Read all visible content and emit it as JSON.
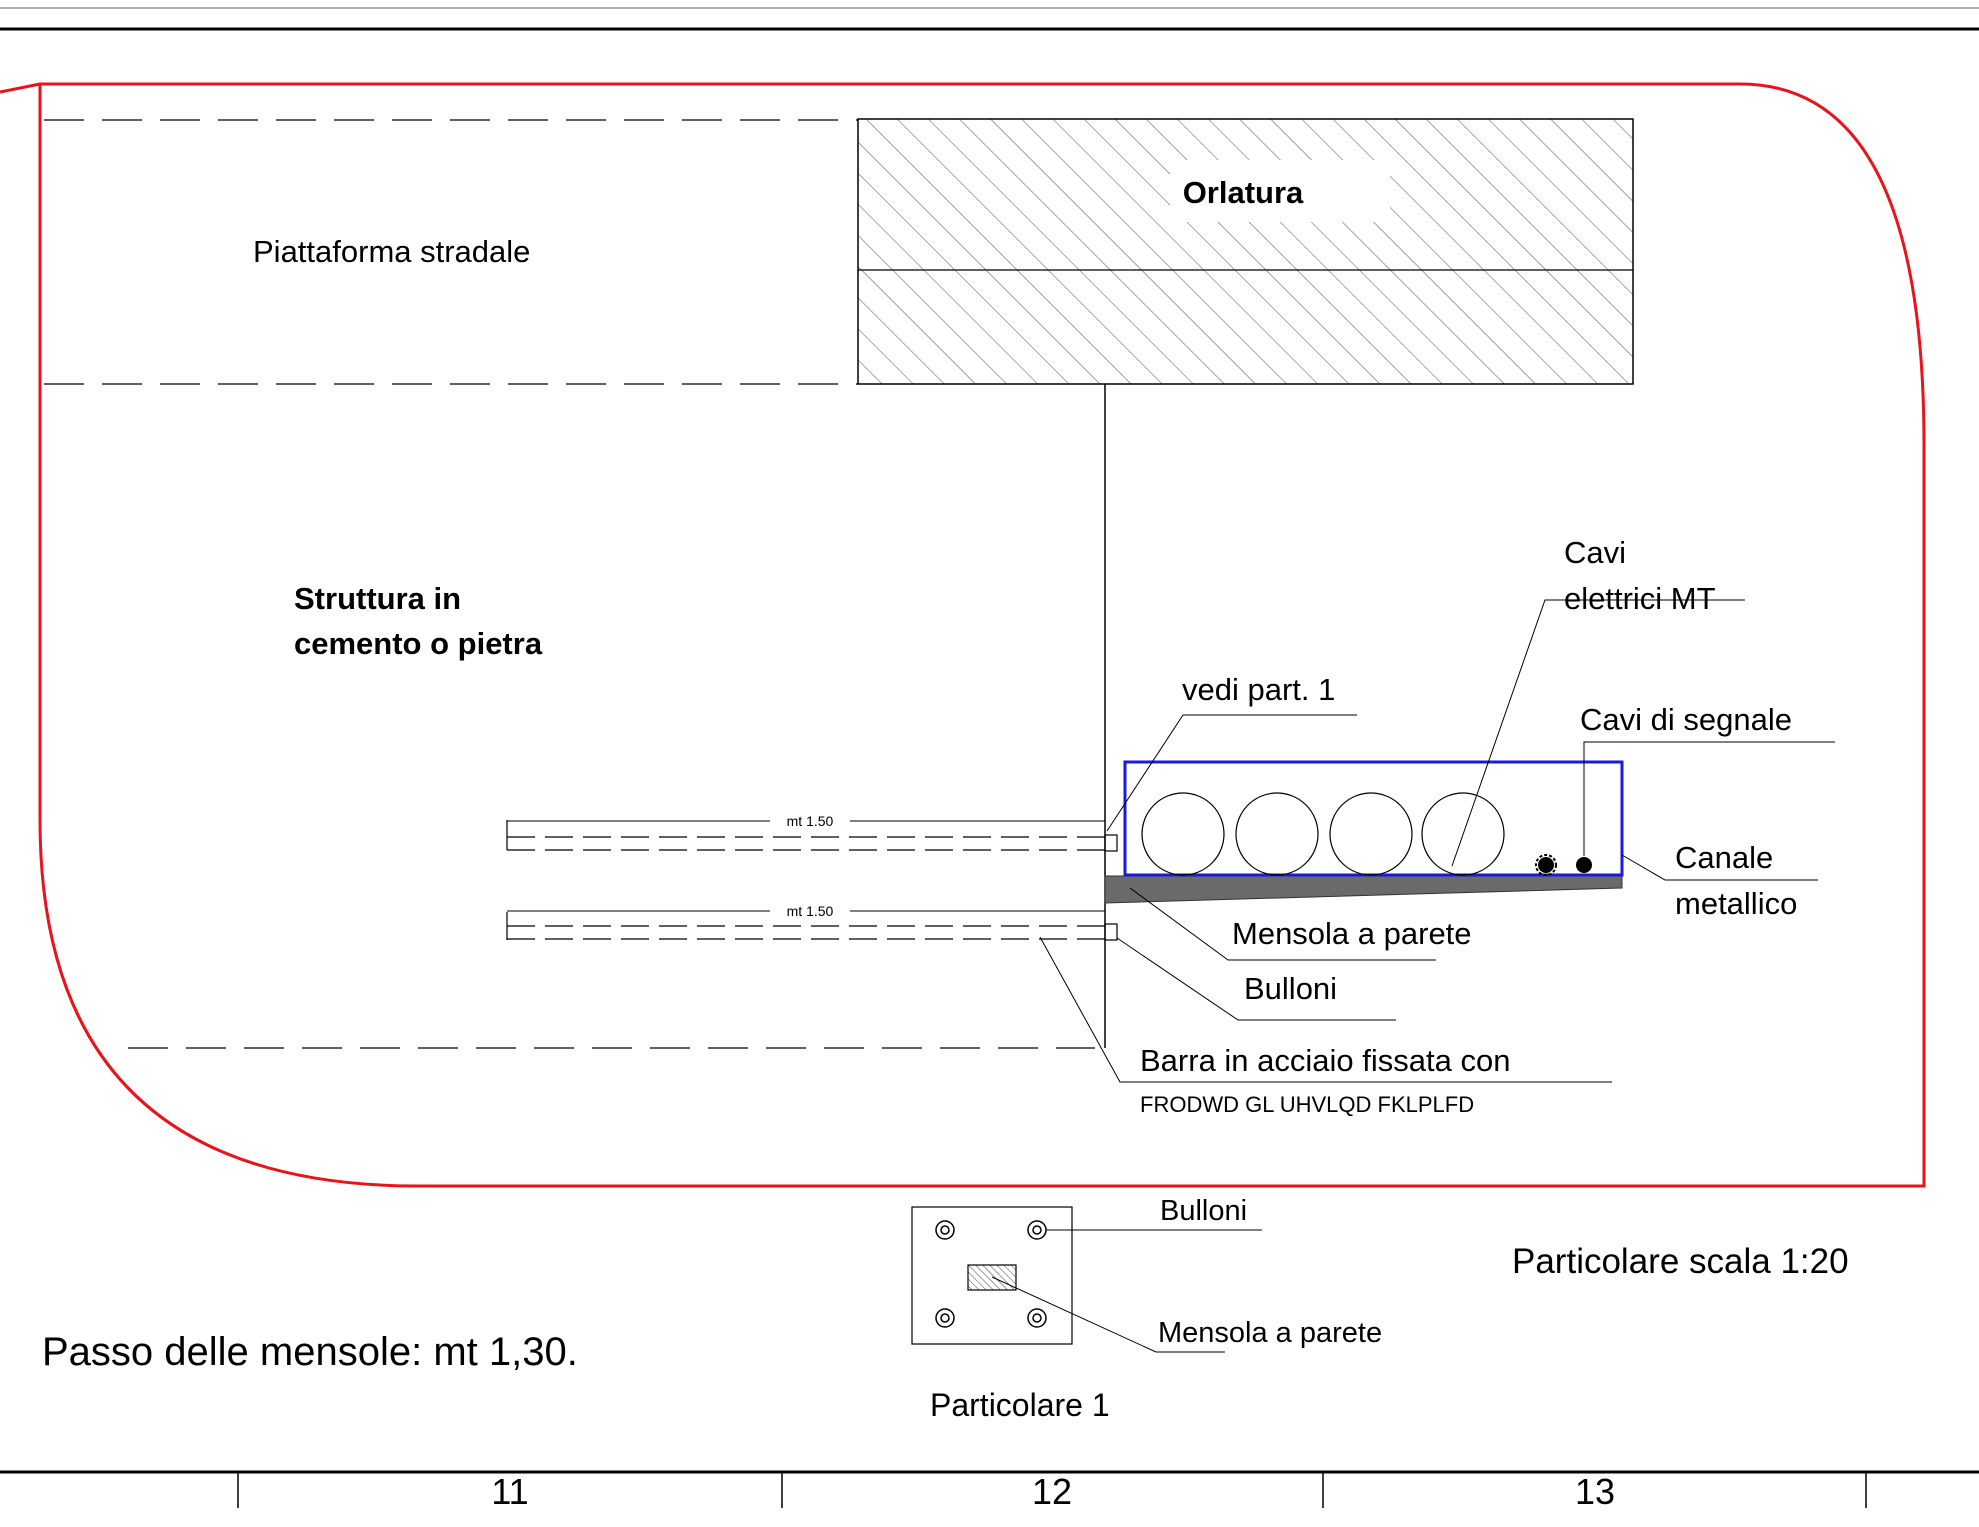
{
  "labels": {
    "orlatura": "Orlatura",
    "piattaforma": "Piattaforma stradale",
    "struttura_line1": "Struttura in",
    "struttura_line2": "cemento o pietra",
    "cavi_mt_line1": "Cavi",
    "cavi_mt_line2": "elettrici MT",
    "vedi_part": "vedi part. 1",
    "cavi_segnale": "Cavi di segnale",
    "canale_line1": "Canale",
    "canale_line2": "metallico",
    "mensola": "Mensola a parete",
    "bulloni": "Bulloni",
    "barra_line1": "Barra in acciaio fissata con",
    "barra_line2": "FRODWD GL UHVLQD FKLPLFD",
    "dim_upper": "mt 1.50",
    "dim_lower": "mt 1.50"
  },
  "detail": {
    "bulloni": "Bulloni",
    "mensola": "Mensola a parete",
    "title": "Particolare  1"
  },
  "notes": {
    "scala": "Particolare scala 1:20",
    "passo": "Passo delle mensole: mt 1,30."
  },
  "grid_numbers": [
    "11",
    "12",
    "13"
  ],
  "colors": {
    "outline": "#e8141c",
    "channel": "#1a1adc",
    "ink": "#000000",
    "bracket": "#6a6a6a"
  }
}
